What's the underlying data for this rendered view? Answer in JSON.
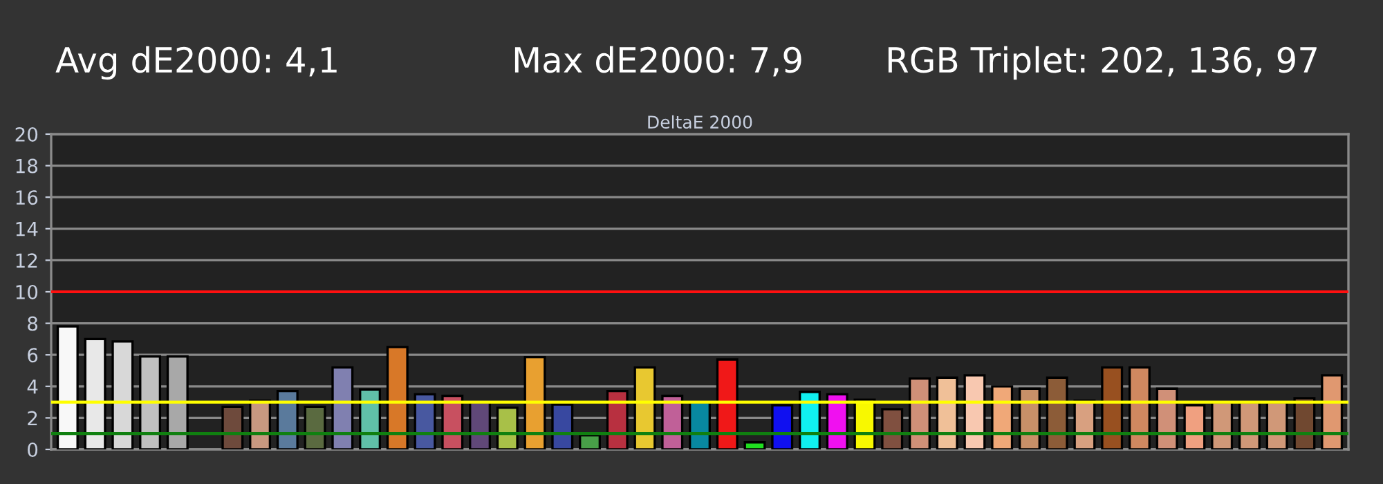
{
  "chart_data": {
    "type": "bar",
    "title": "DeltaE 2000",
    "annotations": [
      "Avg dE2000: 4,1",
      "Max dE2000: 7,9",
      "RGB Triplet: 202, 136, 97"
    ],
    "categories": [
      null,
      null,
      null,
      null,
      null,
      null,
      null,
      null,
      null,
      null,
      null,
      null,
      null,
      null,
      null,
      null,
      null,
      null,
      null,
      null,
      null,
      null,
      null,
      null,
      null,
      null,
      null,
      null,
      null,
      null,
      null,
      null,
      null,
      null,
      null,
      null,
      null,
      null,
      null,
      null,
      null,
      null,
      null,
      null,
      null,
      null,
      null
    ],
    "values": [
      7.8,
      7.0,
      6.85,
      5.9,
      5.9,
      null,
      2.7,
      3.1,
      3.7,
      2.7,
      5.2,
      3.8,
      6.5,
      3.5,
      3.4,
      3.0,
      2.65,
      5.85,
      2.85,
      0.9,
      3.7,
      5.2,
      3.4,
      3.0,
      5.7,
      0.45,
      2.8,
      3.65,
      3.5,
      3.15,
      2.55,
      4.5,
      4.55,
      4.7,
      4.0,
      3.85,
      4.55,
      3.1,
      5.2,
      5.2,
      3.85,
      2.8,
      3.0,
      3.0,
      3.0,
      3.25,
      4.7
    ],
    "colors": [
      "#f8f8f8",
      "#e8e8e8",
      "#d8d8d8",
      "#c0c0c0",
      "#a8a8a8",
      null,
      "#6e4a3c",
      "#c89880",
      "#5a7a9c",
      "#5a6a40",
      "#8080b0",
      "#60c0a8",
      "#d87828",
      "#4858a0",
      "#c85060",
      "#604878",
      "#a8c048",
      "#e8a030",
      "#3848a0",
      "#48a048",
      "#b83040",
      "#e8c830",
      "#c06098",
      "#0888a0",
      "#f01818",
      "#20e020",
      "#1010f0",
      "#10f0f0",
      "#f010f0",
      "#f8f800",
      "#805040",
      "#d09078",
      "#f0c098",
      "#f8c8b0",
      "#f0a878",
      "#c89068",
      "#8c5c38",
      "#d8a080",
      "#985020",
      "#d08860",
      "#d09078",
      "#f0a080",
      "#d09878",
      "#d09878",
      "#d09878",
      "#704830",
      "#e09870"
    ],
    "ylim": [
      0,
      20
    ],
    "yticks": [
      0,
      2,
      4,
      6,
      8,
      10,
      12,
      14,
      16,
      18,
      20
    ],
    "ref_lines": [
      {
        "axis": "y",
        "value": 10,
        "label": null,
        "color": "#ff1010"
      },
      {
        "axis": "y",
        "value": 3,
        "label": null,
        "color": "#ffff00"
      },
      {
        "axis": "y",
        "value": 1,
        "label": null,
        "color": "#108010"
      }
    ],
    "grid": "y",
    "legend": false,
    "tick_labels": "y"
  }
}
